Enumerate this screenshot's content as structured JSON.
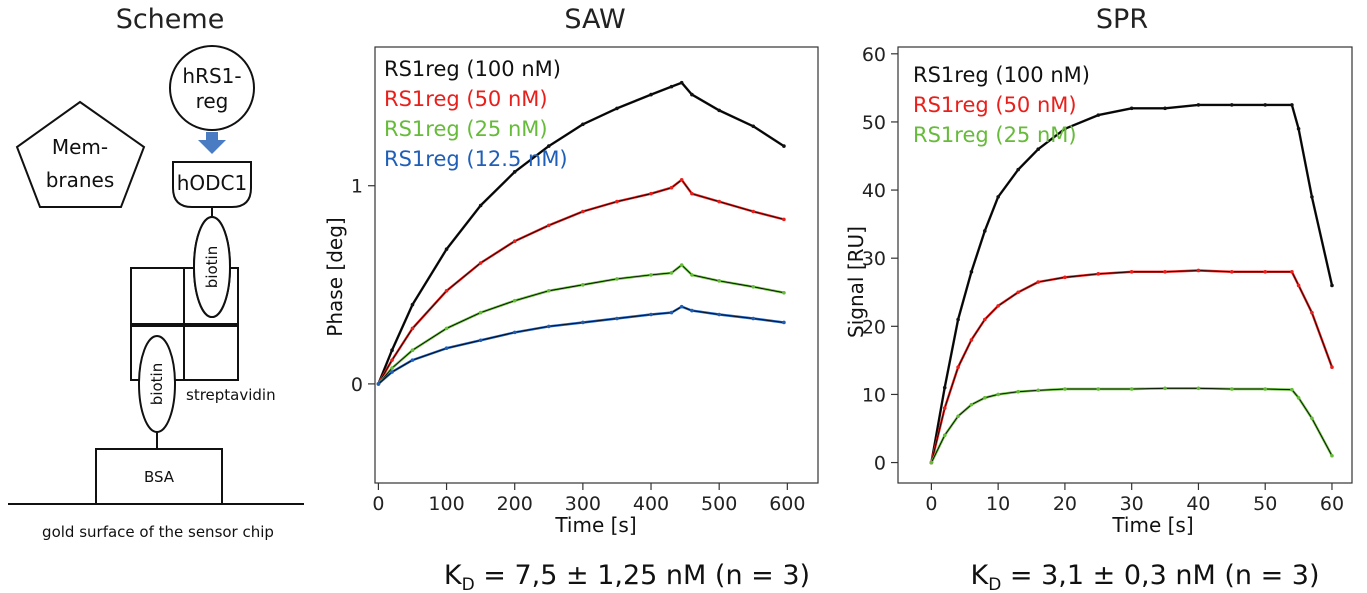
{
  "scheme": {
    "title": "Scheme",
    "membranes_line1": "Mem-",
    "membranes_line2": "branes",
    "hrs1_line1": "hRS1-",
    "hrs1_line2": "reg",
    "hodc1": "hODC1",
    "biotin_top": "biotin",
    "biotin_bottom": "biotin",
    "streptavidin": "streptavidin",
    "bsa": "BSA",
    "surface": "gold surface of the sensor chip",
    "arrow_color": "#4a7cc4"
  },
  "saw_kd": {
    "k": "K",
    "sub": "D",
    "rest": " = 7,5 ± 1,25 nM (n = 3)"
  },
  "spr_kd": {
    "k": "K",
    "sub": "D",
    "rest": " = 3,1 ± 0,3 nM (n = 3)"
  },
  "chart_data": [
    {
      "type": "line",
      "title": "SAW",
      "xlabel": "Time [s]",
      "ylabel": "Phase [deg]",
      "xlim": [
        -5,
        645
      ],
      "ylim": [
        -0.5,
        1.7
      ],
      "xticks": [
        0,
        100,
        200,
        300,
        400,
        500,
        600
      ],
      "yticks": [
        0,
        1
      ],
      "grid": false,
      "legend_position": "top-left",
      "series": [
        {
          "name": "RS1reg (100 nM)",
          "color": "#111111",
          "x": [
            0,
            20,
            50,
            100,
            150,
            200,
            250,
            300,
            350,
            400,
            430,
            445,
            460,
            500,
            550,
            595
          ],
          "y": [
            0,
            0.17,
            0.4,
            0.68,
            0.9,
            1.07,
            1.2,
            1.31,
            1.39,
            1.46,
            1.5,
            1.52,
            1.46,
            1.38,
            1.3,
            1.2
          ]
        },
        {
          "name": "RS1reg (50 nM)",
          "color": "#e8201c",
          "x": [
            0,
            20,
            50,
            100,
            150,
            200,
            250,
            300,
            350,
            400,
            430,
            445,
            460,
            500,
            550,
            595
          ],
          "y": [
            0,
            0.12,
            0.28,
            0.47,
            0.61,
            0.72,
            0.8,
            0.87,
            0.92,
            0.96,
            0.99,
            1.03,
            0.96,
            0.92,
            0.87,
            0.83
          ]
        },
        {
          "name": "RS1reg (25 nM)",
          "color": "#66bb3a",
          "x": [
            0,
            20,
            50,
            100,
            150,
            200,
            250,
            300,
            350,
            400,
            430,
            445,
            460,
            500,
            550,
            595
          ],
          "y": [
            0,
            0.08,
            0.17,
            0.28,
            0.36,
            0.42,
            0.47,
            0.5,
            0.53,
            0.55,
            0.56,
            0.6,
            0.55,
            0.52,
            0.49,
            0.46
          ]
        },
        {
          "name": "RS1reg (12.5 nM)",
          "color": "#1f5fb8",
          "x": [
            0,
            20,
            50,
            100,
            150,
            200,
            250,
            300,
            350,
            400,
            430,
            445,
            460,
            500,
            550,
            595
          ],
          "y": [
            0,
            0.06,
            0.12,
            0.18,
            0.22,
            0.26,
            0.29,
            0.31,
            0.33,
            0.35,
            0.36,
            0.39,
            0.37,
            0.35,
            0.33,
            0.31
          ]
        }
      ]
    },
    {
      "type": "line",
      "title": "SPR",
      "xlabel": "Time [s]",
      "ylabel": "Signal [RU]",
      "xlim": [
        -5,
        63
      ],
      "ylim": [
        -3,
        61
      ],
      "xticks": [
        0,
        10,
        20,
        30,
        40,
        50,
        60
      ],
      "yticks": [
        0,
        10,
        20,
        30,
        40,
        50,
        60
      ],
      "grid": false,
      "legend_position": "top-left",
      "series": [
        {
          "name": "RS1reg (100 nM)",
          "color": "#111111",
          "x": [
            0,
            2,
            4,
            6,
            8,
            10,
            13,
            16,
            20,
            25,
            30,
            35,
            40,
            45,
            50,
            54,
            55,
            57,
            60
          ],
          "y": [
            0,
            11,
            21,
            28,
            34,
            39,
            43,
            46,
            49,
            51,
            52,
            52,
            52.5,
            52.5,
            52.5,
            52.5,
            49,
            39,
            26
          ]
        },
        {
          "name": "RS1reg (50 nM)",
          "color": "#e8201c",
          "x": [
            0,
            2,
            4,
            6,
            8,
            10,
            13,
            16,
            20,
            25,
            30,
            35,
            40,
            45,
            50,
            54,
            55,
            57,
            60
          ],
          "y": [
            0,
            8,
            14,
            18,
            21,
            23,
            25,
            26.5,
            27.2,
            27.7,
            28,
            28,
            28.2,
            28,
            28,
            28,
            26,
            22,
            14
          ]
        },
        {
          "name": "RS1reg (25 nM)",
          "color": "#66bb3a",
          "x": [
            0,
            2,
            4,
            6,
            8,
            10,
            13,
            16,
            20,
            25,
            30,
            35,
            40,
            45,
            50,
            54,
            55,
            57,
            60
          ],
          "y": [
            0,
            4,
            6.8,
            8.5,
            9.5,
            10,
            10.4,
            10.6,
            10.8,
            10.8,
            10.8,
            10.9,
            10.9,
            10.8,
            10.8,
            10.7,
            9.5,
            6.5,
            1
          ]
        }
      ]
    }
  ]
}
